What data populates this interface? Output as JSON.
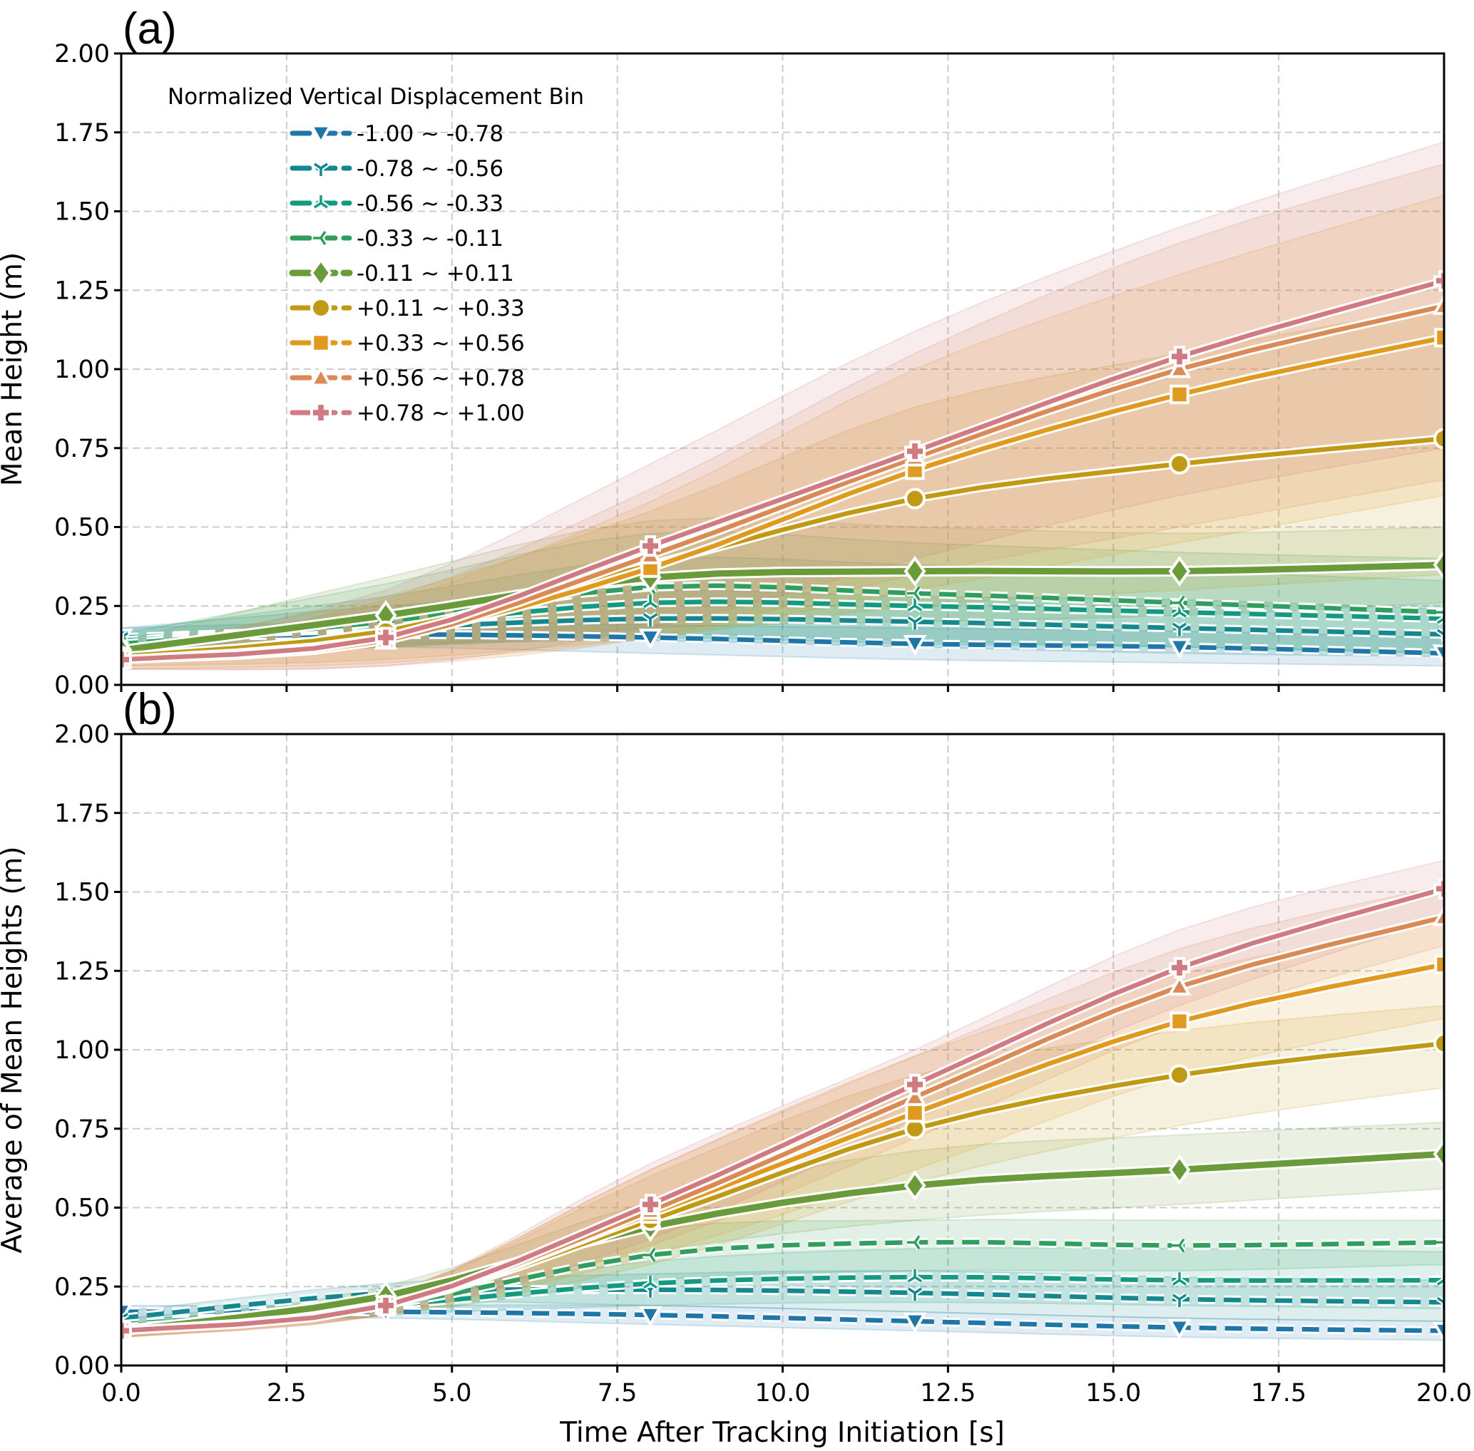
{
  "chart_data": [
    {
      "panel_label": "(a)",
      "type": "line",
      "xlabel": "",
      "ylabel": "Mean Height (m)",
      "xlim": [
        0,
        20
      ],
      "ylim": [
        0,
        2.0
      ],
      "x_ticks": [
        "0.0",
        "2.5",
        "5.0",
        "7.5",
        "10.0",
        "12.5",
        "15.0",
        "17.5",
        "20.0"
      ],
      "x_ticks_labeled": false,
      "y_ticks": [
        "0.00",
        "0.25",
        "0.50",
        "0.75",
        "1.00",
        "1.25",
        "1.50",
        "1.75",
        "2.00"
      ],
      "grid": true,
      "legend": {
        "title": "Normalized Vertical Displacement Bin",
        "placement": "upper-left"
      },
      "x": [
        0,
        4,
        8,
        12,
        16,
        20
      ],
      "series": [
        {
          "name": "-1.00 ~ -0.78",
          "color": "#1f77a8",
          "marker": "triangle-down",
          "dashed": true,
          "values": [
            0.15,
            0.16,
            0.15,
            0.13,
            0.12,
            0.1
          ],
          "band": [
            [
              0.12,
              0.18
            ],
            [
              0.12,
              0.2
            ],
            [
              0.1,
              0.19
            ],
            [
              0.08,
              0.18
            ],
            [
              0.07,
              0.17
            ],
            [
              0.06,
              0.15
            ]
          ]
        },
        {
          "name": "-0.78 ~ -0.56",
          "color": "#14878f",
          "marker": "tri-down",
          "dashed": true,
          "values": [
            0.15,
            0.18,
            0.21,
            0.2,
            0.18,
            0.16
          ],
          "band": [
            [
              0.12,
              0.18
            ],
            [
              0.13,
              0.25
            ],
            [
              0.14,
              0.3
            ],
            [
              0.12,
              0.28
            ],
            [
              0.1,
              0.27
            ],
            [
              0.09,
              0.24
            ]
          ]
        },
        {
          "name": "-0.56 ~ -0.33",
          "color": "#149a80",
          "marker": "tri-up",
          "dashed": true,
          "values": [
            0.14,
            0.19,
            0.26,
            0.25,
            0.23,
            0.21
          ],
          "band": [
            [
              0.11,
              0.17
            ],
            [
              0.12,
              0.28
            ],
            [
              0.15,
              0.4
            ],
            [
              0.13,
              0.38
            ],
            [
              0.12,
              0.36
            ],
            [
              0.1,
              0.33
            ]
          ]
        },
        {
          "name": "-0.33 ~ -0.11",
          "color": "#2f9e5e",
          "marker": "tri-left",
          "dashed": true,
          "values": [
            0.13,
            0.2,
            0.31,
            0.29,
            0.26,
            0.23
          ],
          "band": [
            [
              0.1,
              0.16
            ],
            [
              0.12,
              0.32
            ],
            [
              0.16,
              0.48
            ],
            [
              0.14,
              0.45
            ],
            [
              0.12,
              0.42
            ],
            [
              0.1,
              0.4
            ]
          ]
        },
        {
          "name": "-0.11 ~ +0.11",
          "color": "#6a9a3a",
          "marker": "diamond",
          "dashed": false,
          "values": [
            0.11,
            0.22,
            0.34,
            0.36,
            0.36,
            0.38
          ],
          "band": [
            [
              0.08,
              0.14
            ],
            [
              0.12,
              0.34
            ],
            [
              0.18,
              0.52
            ],
            [
              0.2,
              0.5
            ],
            [
              0.22,
              0.48
            ],
            [
              0.26,
              0.5
            ]
          ]
        },
        {
          "name": "+0.11 ~ +0.33",
          "color": "#c09a14",
          "marker": "circle",
          "dashed": false,
          "values": [
            0.09,
            0.17,
            0.38,
            0.59,
            0.7,
            0.78
          ],
          "band": [
            [
              0.06,
              0.12
            ],
            [
              0.08,
              0.28
            ],
            [
              0.15,
              0.55
            ],
            [
              0.25,
              0.88
            ],
            [
              0.3,
              1.05
            ],
            [
              0.35,
              1.2
            ]
          ]
        },
        {
          "name": "+0.33 ~ +0.56",
          "color": "#e09a20",
          "marker": "square",
          "dashed": false,
          "values": [
            0.08,
            0.15,
            0.37,
            0.68,
            0.92,
            1.1
          ],
          "band": [
            [
              0.05,
              0.11
            ],
            [
              0.07,
              0.26
            ],
            [
              0.15,
              0.58
            ],
            [
              0.3,
              1.0
            ],
            [
              0.45,
              1.3
            ],
            [
              0.6,
              1.55
            ]
          ]
        },
        {
          "name": "+0.56 ~ +0.78",
          "color": "#d98a55",
          "marker": "triangle-up",
          "dashed": false,
          "values": [
            0.08,
            0.14,
            0.41,
            0.72,
            1.0,
            1.2
          ],
          "band": [
            [
              0.05,
              0.11
            ],
            [
              0.06,
              0.27
            ],
            [
              0.15,
              0.62
            ],
            [
              0.35,
              1.05
            ],
            [
              0.5,
              1.4
            ],
            [
              0.65,
              1.65
            ]
          ]
        },
        {
          "name": "+0.78 ~ +1.00",
          "color": "#d07a82",
          "marker": "plus",
          "dashed": false,
          "values": [
            0.08,
            0.15,
            0.44,
            0.74,
            1.04,
            1.28
          ],
          "band": [
            [
              0.05,
              0.11
            ],
            [
              0.06,
              0.3
            ],
            [
              0.18,
              0.7
            ],
            [
              0.4,
              1.12
            ],
            [
              0.6,
              1.45
            ],
            [
              0.75,
              1.72
            ]
          ]
        }
      ]
    },
    {
      "panel_label": "(b)",
      "type": "line",
      "xlabel": "Time After Tracking Initiation [s]",
      "ylabel": "Average of Mean Heights (m)",
      "xlim": [
        0,
        20
      ],
      "ylim": [
        0,
        2.0
      ],
      "x_ticks": [
        "0.0",
        "2.5",
        "5.0",
        "7.5",
        "10.0",
        "12.5",
        "15.0",
        "17.5",
        "20.0"
      ],
      "x_ticks_labeled": true,
      "y_ticks": [
        "0.00",
        "0.25",
        "0.50",
        "0.75",
        "1.00",
        "1.25",
        "1.50",
        "1.75",
        "2.00"
      ],
      "grid": true,
      "x": [
        0,
        4,
        8,
        12,
        16,
        20
      ],
      "series": [
        {
          "name": "-1.00 ~ -0.78",
          "color": "#1f77a8",
          "marker": "triangle-down",
          "dashed": true,
          "values": [
            0.17,
            0.17,
            0.16,
            0.14,
            0.12,
            0.11
          ],
          "band": [
            [
              0.15,
              0.19
            ],
            [
              0.15,
              0.19
            ],
            [
              0.13,
              0.19
            ],
            [
              0.11,
              0.17
            ],
            [
              0.09,
              0.15
            ],
            [
              0.08,
              0.14
            ]
          ]
        },
        {
          "name": "-0.78 ~ -0.56",
          "color": "#14878f",
          "marker": "tri-down",
          "dashed": true,
          "values": [
            0.15,
            0.23,
            0.24,
            0.23,
            0.21,
            0.2
          ],
          "band": [
            [
              0.13,
              0.17
            ],
            [
              0.2,
              0.26
            ],
            [
              0.19,
              0.29
            ],
            [
              0.17,
              0.3
            ],
            [
              0.15,
              0.28
            ],
            [
              0.14,
              0.27
            ]
          ]
        },
        {
          "name": "-0.56 ~ -0.33",
          "color": "#149a80",
          "marker": "tri-up",
          "dashed": true,
          "values": [
            0.13,
            0.19,
            0.26,
            0.28,
            0.27,
            0.27
          ],
          "band": [
            [
              0.11,
              0.15
            ],
            [
              0.16,
              0.22
            ],
            [
              0.19,
              0.33
            ],
            [
              0.2,
              0.37
            ],
            [
              0.19,
              0.37
            ],
            [
              0.18,
              0.36
            ]
          ]
        },
        {
          "name": "-0.33 ~ -0.11",
          "color": "#2f9e5e",
          "marker": "tri-left",
          "dashed": true,
          "values": [
            0.12,
            0.19,
            0.35,
            0.39,
            0.38,
            0.39
          ],
          "band": [
            [
              0.1,
              0.14
            ],
            [
              0.16,
              0.22
            ],
            [
              0.27,
              0.43
            ],
            [
              0.3,
              0.46
            ],
            [
              0.3,
              0.46
            ],
            [
              0.32,
              0.46
            ]
          ]
        },
        {
          "name": "-0.11 ~ +0.11",
          "color": "#6a9a3a",
          "marker": "diamond",
          "dashed": false,
          "values": [
            0.11,
            0.22,
            0.44,
            0.57,
            0.62,
            0.67
          ],
          "band": [
            [
              0.09,
              0.13
            ],
            [
              0.19,
              0.25
            ],
            [
              0.36,
              0.52
            ],
            [
              0.46,
              0.68
            ],
            [
              0.51,
              0.73
            ],
            [
              0.56,
              0.77
            ]
          ]
        },
        {
          "name": "+0.11 ~ +0.33",
          "color": "#c09a14",
          "marker": "circle",
          "dashed": false,
          "values": [
            0.11,
            0.19,
            0.46,
            0.75,
            0.92,
            1.02
          ],
          "band": [
            [
              0.09,
              0.13
            ],
            [
              0.16,
              0.22
            ],
            [
              0.32,
              0.6
            ],
            [
              0.58,
              0.92
            ],
            [
              0.76,
              1.06
            ],
            [
              0.88,
              1.14
            ]
          ]
        },
        {
          "name": "+0.33 ~ +0.56",
          "color": "#e09a20",
          "marker": "square",
          "dashed": false,
          "values": [
            0.11,
            0.19,
            0.48,
            0.8,
            1.09,
            1.27
          ],
          "band": [
            [
              0.09,
              0.13
            ],
            [
              0.16,
              0.22
            ],
            [
              0.35,
              0.62
            ],
            [
              0.62,
              0.98
            ],
            [
              0.92,
              1.24
            ],
            [
              1.1,
              1.4
            ]
          ]
        },
        {
          "name": "+0.56 ~ +0.78",
          "color": "#d98a55",
          "marker": "triangle-up",
          "dashed": false,
          "values": [
            0.11,
            0.19,
            0.49,
            0.85,
            1.2,
            1.42
          ],
          "band": [
            [
              0.09,
              0.13
            ],
            [
              0.16,
              0.22
            ],
            [
              0.38,
              0.62
            ],
            [
              0.72,
              0.98
            ],
            [
              1.08,
              1.32
            ],
            [
              1.33,
              1.52
            ]
          ]
        },
        {
          "name": "+0.78 ~ +1.00",
          "color": "#d07a82",
          "marker": "plus",
          "dashed": false,
          "values": [
            0.11,
            0.19,
            0.51,
            0.89,
            1.26,
            1.51
          ],
          "band": [
            [
              0.09,
              0.13
            ],
            [
              0.16,
              0.22
            ],
            [
              0.4,
              0.64
            ],
            [
              0.78,
              1.0
            ],
            [
              1.14,
              1.38
            ],
            [
              1.42,
              1.6
            ]
          ]
        }
      ]
    }
  ]
}
